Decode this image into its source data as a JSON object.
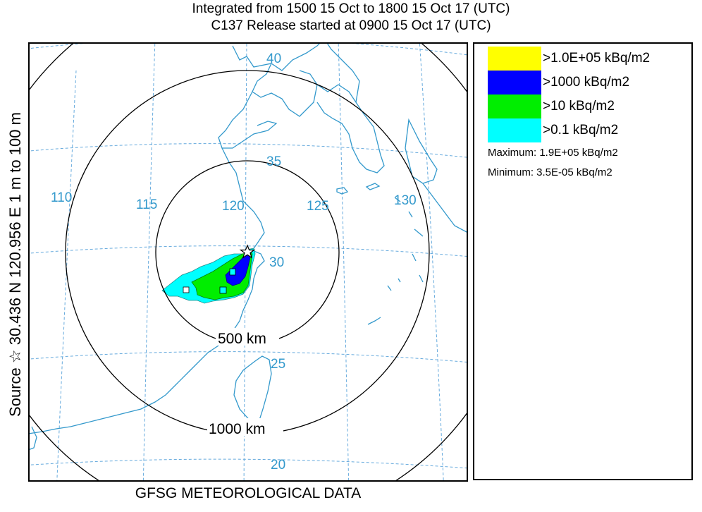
{
  "header": {
    "line1": "Integrated from 1500 15 Oct to 1800 15 Oct 17 (UTC)",
    "line2": "C137 Release started at 0900 15 Oct 17 (UTC)"
  },
  "side_label": "Source ☆ 30.436 N 120.956 E 1 m to 100 m",
  "footer": "GFSG METEOROLOGICAL DATA",
  "legend": {
    "items": [
      {
        "label": ">1.0E+05  kBq/m2",
        "color": "#ffff00"
      },
      {
        "label": ">1000  kBq/m2",
        "color": "#0000ff"
      },
      {
        "label": ">10  kBq/m2",
        "color": "#00ee00"
      },
      {
        "label": ">0.1  kBq/m2",
        "color": "#00ffff"
      }
    ],
    "maximum": "Maximum: 1.9E+05  kBq/m2",
    "minimum": "Minimum: 3.5E-05  kBq/m2"
  },
  "map": {
    "longitude_labels": [
      "110",
      "115",
      "120",
      "125",
      "130"
    ],
    "latitude_labels": [
      "40",
      "35",
      "30",
      "25",
      "20"
    ],
    "range_rings": [
      {
        "label": "500 km"
      },
      {
        "label": "1000 km"
      }
    ],
    "coast_color": "#3399cc",
    "grid_color": "#66aadd",
    "source_icon": "star-icon"
  }
}
